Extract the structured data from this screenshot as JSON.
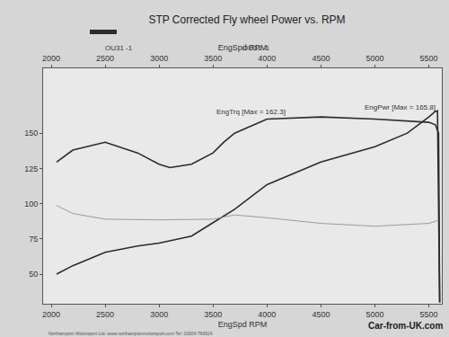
{
  "chart_data": {
    "type": "line",
    "title": "STP Corrected Fly wheel Power vs. RPM",
    "subtitle": "OU31 -1",
    "legend_entry": "OU31 -1",
    "xlabel": "EngSpd RPM",
    "xlabel_top": "EngSpd RPM",
    "xlim": [
      1925,
      5620
    ],
    "xticks": [
      2000,
      2500,
      3000,
      3500,
      4000,
      4500,
      5000,
      5500
    ],
    "ylim": [
      29,
      196
    ],
    "yticks": [
      50,
      75,
      100,
      125,
      150
    ],
    "grid": false,
    "series": [
      {
        "name": "EngTrq",
        "color": "#2b2b2b",
        "x": [
          2050,
          2200,
          2500,
          2800,
          3000,
          3100,
          3300,
          3500,
          3600,
          3700,
          4000,
          4500,
          5000,
          5500,
          5560,
          5590,
          5600
        ],
        "values": [
          129.5,
          138,
          143.6,
          136,
          128,
          125.6,
          128,
          136,
          143.6,
          150,
          160,
          161.5,
          160,
          157.7,
          156,
          150,
          30
        ]
      },
      {
        "name": "EngPwr",
        "color": "#2b2b2b",
        "x": [
          2050,
          2200,
          2500,
          2800,
          3000,
          3300,
          3500,
          3700,
          4000,
          4500,
          5000,
          5300,
          5500,
          5560,
          5580,
          5600
        ],
        "values": [
          50,
          56,
          65.5,
          70,
          72,
          77,
          86.5,
          96,
          113.5,
          129.5,
          140.4,
          150,
          161.5,
          165.4,
          165.8,
          30
        ]
      },
      {
        "color": "#9a9a9a",
        "x": [
          2050,
          2200,
          2500,
          3000,
          3500,
          3700,
          4000,
          4500,
          5000,
          5500,
          5600
        ],
        "values": [
          98.7,
          93,
          89,
          88.5,
          89,
          92,
          90,
          86,
          84,
          86,
          88.5
        ]
      }
    ],
    "annotations": [
      {
        "text": "EngTrq [Max = 162.3]",
        "x": 3850,
        "y": 165
      },
      {
        "text": "EngPwr [Max = 165.8]",
        "x": 5230,
        "y": 168
      }
    ],
    "footer": "Northampton Motorsport Ltd. www.northamptonmotorsport.com Tel: 01604 766624",
    "watermark": "Car-from-UK.com"
  }
}
